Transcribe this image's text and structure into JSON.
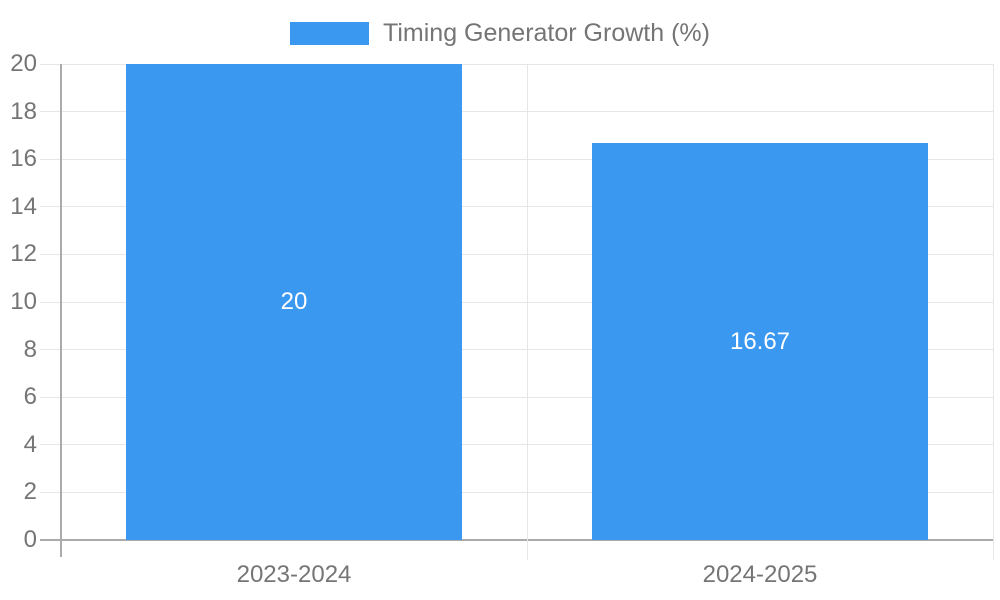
{
  "chart_data": {
    "type": "bar",
    "title": "",
    "xlabel": "",
    "ylabel": "",
    "categories": [
      "2023-2024",
      "2024-2025"
    ],
    "series": [
      {
        "name": "Timing Generator Growth (%)",
        "values": [
          20,
          16.67
        ]
      }
    ],
    "bar_labels": [
      "20",
      "16.67"
    ],
    "ylim": [
      0,
      20
    ],
    "ytick_step": 2,
    "yticks": [
      0,
      2,
      4,
      6,
      8,
      10,
      12,
      14,
      16,
      18,
      20
    ],
    "grid": true,
    "legend_position": "top-center",
    "colors": {
      "bar": "#3b98f0",
      "grid": "#e6e6e6",
      "axis": "#ababab",
      "tick_label": "#757575",
      "legend_text": "#757575",
      "bar_label": "#ffffff",
      "background": "#ffffff"
    }
  }
}
